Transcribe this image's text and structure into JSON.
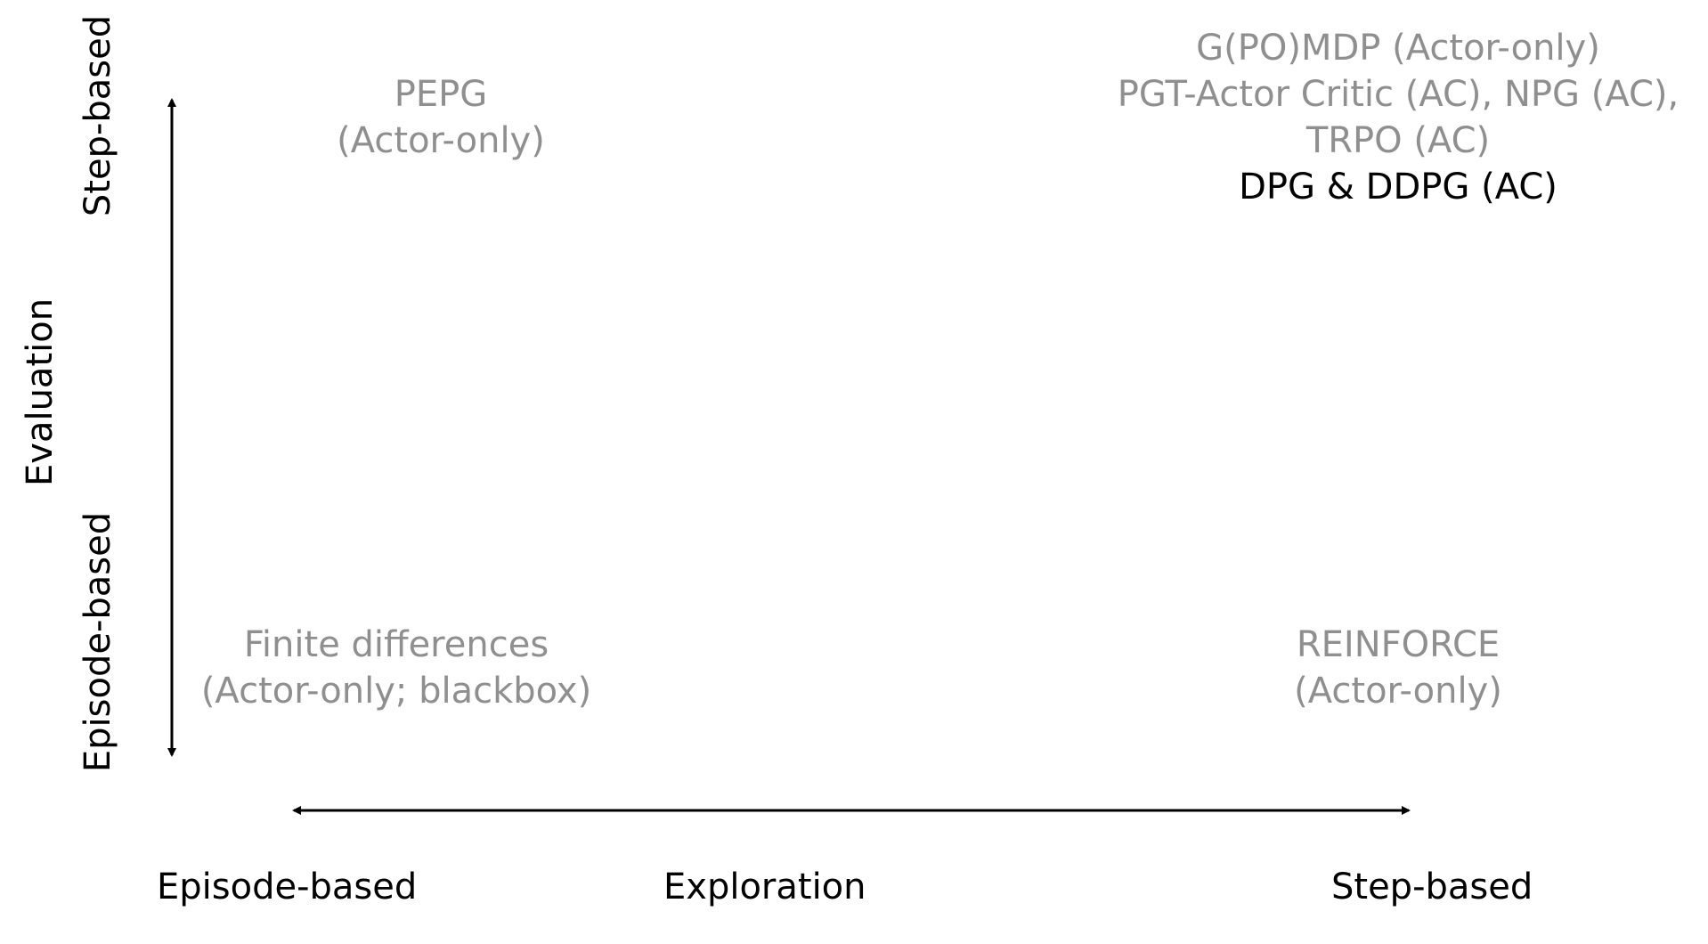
{
  "quadrants": {
    "top_left": {
      "lines": [
        "PEPG",
        "(Actor-only)"
      ]
    },
    "top_right": {
      "lines": [
        "G(PO)MDP (Actor-only)",
        "PGT-Actor Critic (AC), NPG (AC),",
        "TRPO (AC)"
      ],
      "highlight": "DPG & DDPG (AC)"
    },
    "bottom_left": {
      "lines": [
        "Finite differences",
        "(Actor-only; blackbox)"
      ]
    },
    "bottom_right": {
      "lines": [
        "REINFORCE",
        "(Actor-only)"
      ]
    }
  },
  "x_axis": {
    "title": "Exploration",
    "left_label": "Episode-based",
    "right_label": "Step-based"
  },
  "y_axis": {
    "title": "Evaluation",
    "top_label": "Step-based",
    "bottom_label": "Episode-based"
  },
  "colors": {
    "muted_text": "#8f8f8f",
    "highlight_text": "#000000",
    "arrow": "#000000"
  }
}
